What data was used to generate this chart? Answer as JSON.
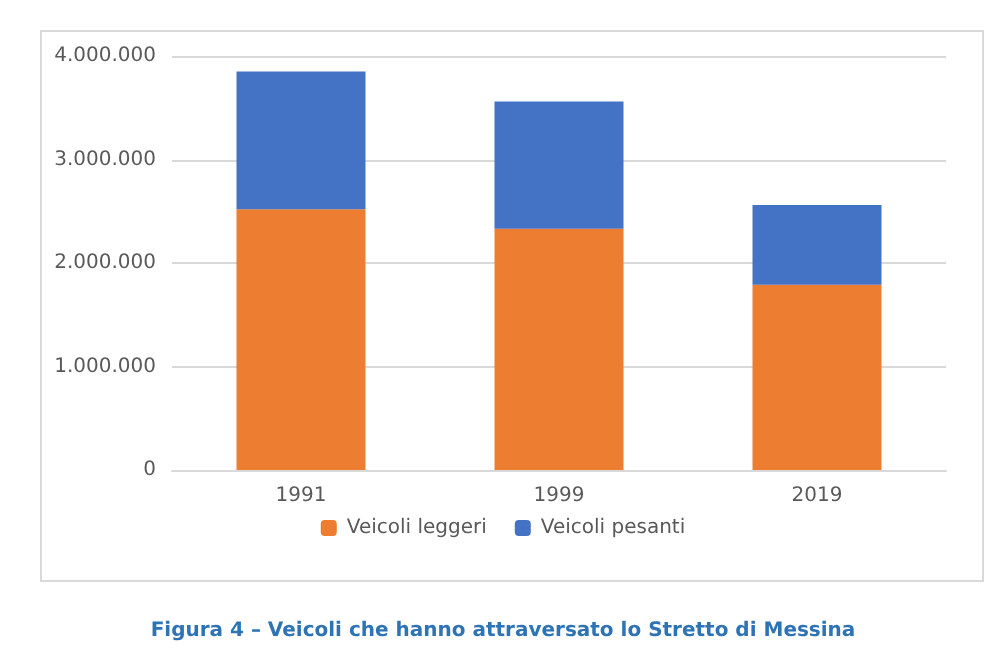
{
  "chart_data": {
    "type": "bar",
    "stacked": true,
    "categories": [
      "1991",
      "1999",
      "2019"
    ],
    "series": [
      {
        "name": "Veicoli leggeri",
        "color": "#ed7d31",
        "values": [
          2520000,
          2330000,
          1790000
        ]
      },
      {
        "name": "Veicoli pesanti",
        "color": "#4472c4",
        "values": [
          1330000,
          1230000,
          770000
        ]
      }
    ],
    "ylim": [
      0,
      4000000
    ],
    "yticks": [
      {
        "value": 0,
        "label": "0"
      },
      {
        "value": 1000000,
        "label": "1.000.000"
      },
      {
        "value": 2000000,
        "label": "2.000.000"
      },
      {
        "value": 3000000,
        "label": "3.000.000"
      },
      {
        "value": 4000000,
        "label": "4.000.000"
      }
    ],
    "grid": "y",
    "legend": "bottom",
    "annotations": [
      "Figura 4 – Veicoli che hanno attraversato lo Stretto di Messina"
    ]
  }
}
